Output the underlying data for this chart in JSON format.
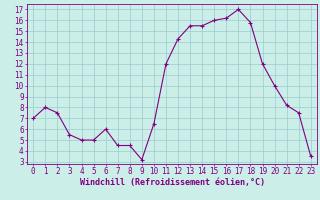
{
  "x": [
    0,
    1,
    2,
    3,
    4,
    5,
    6,
    7,
    8,
    9,
    10,
    11,
    12,
    13,
    14,
    15,
    16,
    17,
    18,
    19,
    20,
    21,
    22,
    23
  ],
  "y": [
    7.0,
    8.0,
    7.5,
    5.5,
    5.0,
    5.0,
    6.0,
    4.5,
    4.5,
    3.2,
    6.5,
    12.0,
    14.3,
    15.5,
    15.5,
    16.0,
    16.2,
    17.0,
    15.8,
    12.0,
    10.0,
    8.2,
    7.5,
    3.5
  ],
  "line_color": "#800080",
  "marker": "+",
  "marker_size": 3,
  "marker_lw": 0.8,
  "bg_color": "#cceee8",
  "grid_color": "#99cccc",
  "xlabel": "Windchill (Refroidissement éolien,°C)",
  "ylabel_ticks": [
    3,
    4,
    5,
    6,
    7,
    8,
    9,
    10,
    11,
    12,
    13,
    14,
    15,
    16,
    17
  ],
  "xlim": [
    -0.5,
    23.5
  ],
  "ylim": [
    2.8,
    17.5
  ],
  "tick_fontsize": 5.5,
  "xlabel_fontsize": 6.0,
  "xtick_labels": [
    "0",
    "1",
    "2",
    "3",
    "4",
    "5",
    "6",
    "7",
    "8",
    "9",
    "10",
    "11",
    "12",
    "13",
    "14",
    "15",
    "16",
    "17",
    "18",
    "19",
    "20",
    "21",
    "22",
    "23"
  ]
}
